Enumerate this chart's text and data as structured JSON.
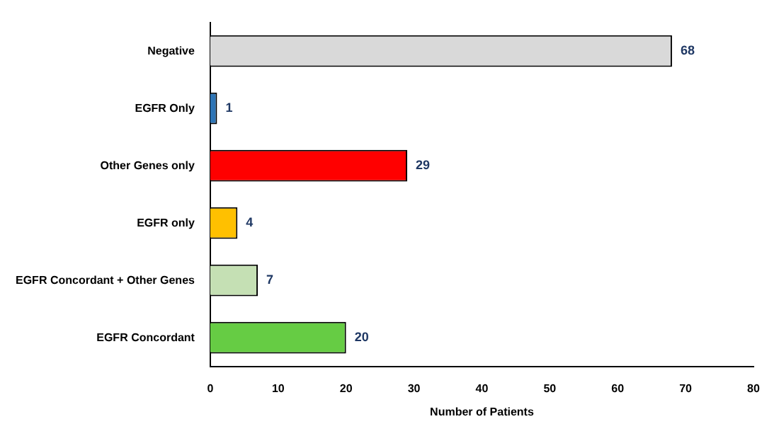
{
  "chart_data": {
    "type": "bar",
    "orientation": "horizontal",
    "xlabel": "Number of Patients",
    "categories": [
      "Negative",
      "EGFR Only",
      "Other Genes only",
      "EGFR only",
      "EGFR Concordant + Other Genes",
      "EGFR Concordant"
    ],
    "values": [
      68,
      1,
      29,
      4,
      7,
      20
    ],
    "colors": [
      "#d9d9d9",
      "#2e75b6",
      "#ff0000",
      "#ffc000",
      "#c5e0b4",
      "#66cc44"
    ],
    "xlim": [
      0,
      80
    ],
    "xticks": [
      0,
      10,
      20,
      30,
      40,
      50,
      60,
      70,
      80
    ],
    "grid": false,
    "data_labels": true,
    "legend": false
  }
}
